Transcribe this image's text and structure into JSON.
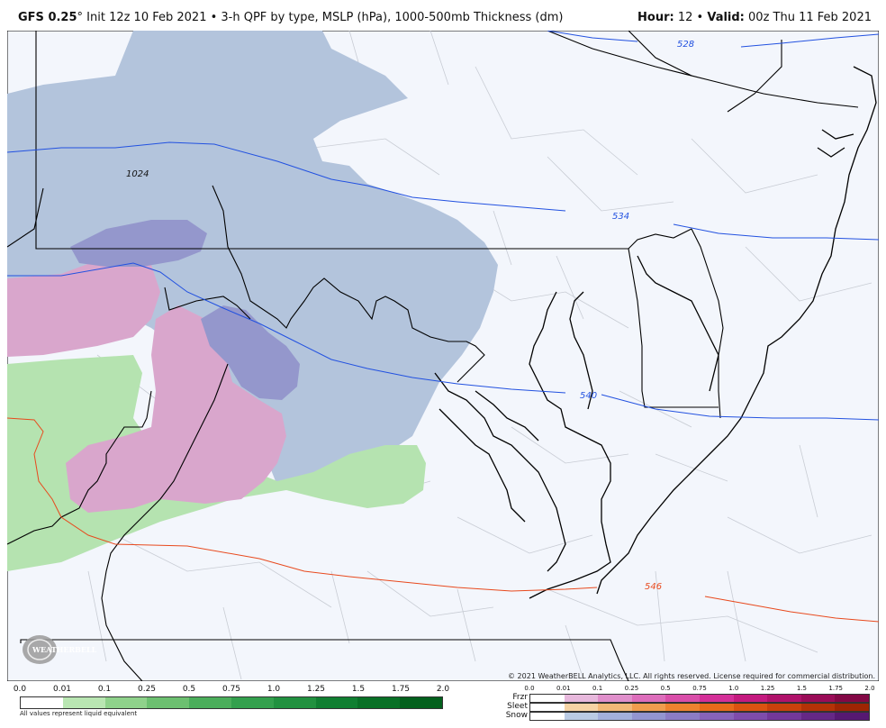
{
  "header": {
    "model": "GFS 0.25",
    "degree": "°",
    "desc": " Init 12z 10 Feb 2021 • 3-h QPF by type, MSLP (hPa), 1000-500mb Thickness (dm)",
    "hour_label": "Hour:",
    "hour_value": "12",
    "bullet": " • ",
    "valid_label": "Valid:",
    "valid_value": "00z Thu 11 Feb 2021"
  },
  "map": {
    "contour_labels": {
      "mslp_1024": "1024",
      "thk_528": "528",
      "thk_534": "534",
      "thk_540": "540",
      "thk_546": "546"
    },
    "colors": {
      "background": "#f3f6fc",
      "snow_light": "#b3c4dc",
      "snow_mod": "#9497cc",
      "rain_light": "#b5e3b0",
      "frzr": "#d9a6cc",
      "thickness_cold": "#2251e0",
      "thickness_warm": "#e8491d",
      "state_line": "#000000",
      "county_line": "#c8ccd4"
    }
  },
  "copyright": "© 2021 WeatherBELL Analytics, LLC. All rights reserved. License required for commercial distribution.",
  "logo_text": "WEATHERBELL",
  "legend": {
    "ticks": [
      "0.0",
      "0.01",
      "0.1",
      "0.25",
      "0.5",
      "0.75",
      "1.0",
      "1.25",
      "1.5",
      "1.75",
      "2.0"
    ],
    "rain_colors": [
      "#ffffff",
      "#b9e6b2",
      "#8fd28b",
      "#6cc070",
      "#4bae5b",
      "#33a04d",
      "#21913f",
      "#107f31",
      "#087026",
      "#03601d"
    ],
    "note": "All values represent liquid equivalent"
  },
  "ptype_legend": {
    "ticks": [
      "0.0",
      "0.01",
      "0.1",
      "0.25",
      "0.5",
      "0.75",
      "1.0",
      "1.25",
      "1.5",
      "1.75",
      "2.0"
    ],
    "rows": [
      {
        "label": "Frzr",
        "colors": [
          "#ffffff",
          "#e7b8dc",
          "#e08fcb",
          "#dd6dbb",
          "#d94ea9",
          "#d42f98",
          "#c41a7f",
          "#b0126a",
          "#9a0c57",
          "#830845"
        ]
      },
      {
        "label": "Sleet",
        "colors": [
          "#ffffff",
          "#f6d3a4",
          "#f2b877",
          "#f09d4e",
          "#ee832f",
          "#e86a1a",
          "#db5310",
          "#c9410a",
          "#b43206",
          "#9e2503"
        ]
      },
      {
        "label": "Snow",
        "colors": [
          "#ffffff",
          "#bacbe4",
          "#a3b0dc",
          "#9395d0",
          "#8b7cc5",
          "#8763b9",
          "#7e4cab",
          "#733899",
          "#652886",
          "#561972"
        ]
      }
    ]
  }
}
